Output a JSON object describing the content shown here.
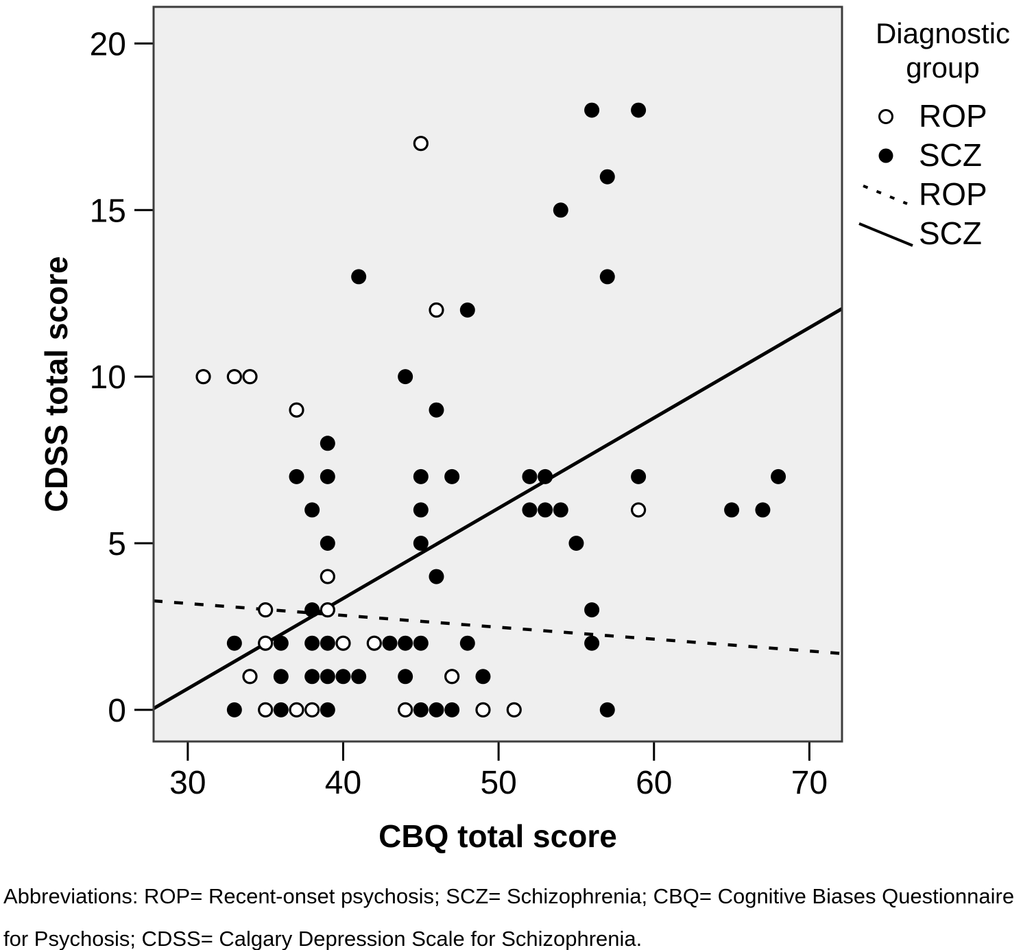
{
  "figure": {
    "x_axis_label": "CBQ total score",
    "y_axis_label": "CDSS total score"
  },
  "legend": {
    "title": "Diagnostic group",
    "items": [
      {
        "marker": "open-circle",
        "label": "ROP"
      },
      {
        "marker": "filled-circle",
        "label": "SCZ"
      },
      {
        "marker": "dotted-line",
        "label": "ROP"
      },
      {
        "marker": "solid-line",
        "label": "SCZ"
      }
    ]
  },
  "caption": {
    "line1": "Abbreviations: ROP= Recent-onset psychosis; SCZ= Schizophrenia; CBQ= Cognitive Biases Questionnaire",
    "line2": "for Psychosis; CDSS= Calgary Depression Scale for Schizophrenia."
  },
  "chart_data": {
    "type": "scatter",
    "title": "",
    "xlabel": "CBQ total score",
    "ylabel": "CDSS total score",
    "xlim": [
      27.8,
      72.1
    ],
    "ylim": [
      -0.95,
      21.1
    ],
    "x_ticks": [
      30,
      40,
      50,
      60,
      70
    ],
    "y_ticks": [
      0,
      5,
      10,
      15,
      20
    ],
    "grid": false,
    "legend_position": "outside-top-right",
    "series": [
      {
        "name": "ROP",
        "marker": "open-circle",
        "points": [
          [
            45,
            17
          ],
          [
            46,
            12
          ],
          [
            31,
            10
          ],
          [
            33,
            10
          ],
          [
            34,
            10
          ],
          [
            37,
            9
          ],
          [
            59,
            6
          ],
          [
            39,
            4
          ],
          [
            35,
            3
          ],
          [
            39,
            3
          ],
          [
            35,
            2
          ],
          [
            40,
            2
          ],
          [
            42,
            2
          ],
          [
            34,
            1
          ],
          [
            47,
            1
          ],
          [
            35,
            0
          ],
          [
            37,
            0
          ],
          [
            38,
            0
          ],
          [
            44,
            0
          ],
          [
            49,
            0
          ],
          [
            51,
            0
          ]
        ]
      },
      {
        "name": "SCZ",
        "marker": "filled-circle",
        "points": [
          [
            56,
            18
          ],
          [
            59,
            18
          ],
          [
            57,
            16
          ],
          [
            54,
            15
          ],
          [
            41,
            13
          ],
          [
            57,
            13
          ],
          [
            48,
            12
          ],
          [
            44,
            10
          ],
          [
            46,
            9
          ],
          [
            39,
            8
          ],
          [
            37,
            7
          ],
          [
            39,
            7
          ],
          [
            45,
            7
          ],
          [
            47,
            7
          ],
          [
            52,
            7
          ],
          [
            53,
            7
          ],
          [
            59,
            7
          ],
          [
            68,
            7
          ],
          [
            38,
            6
          ],
          [
            45,
            6
          ],
          [
            52,
            6
          ],
          [
            53,
            6
          ],
          [
            54,
            6
          ],
          [
            65,
            6
          ],
          [
            67,
            6
          ],
          [
            39,
            5
          ],
          [
            45,
            5
          ],
          [
            55,
            5
          ],
          [
            46,
            4
          ],
          [
            38,
            3
          ],
          [
            56,
            3
          ],
          [
            33,
            2
          ],
          [
            36,
            2
          ],
          [
            38,
            2
          ],
          [
            39,
            2
          ],
          [
            43,
            2
          ],
          [
            44,
            2
          ],
          [
            45,
            2
          ],
          [
            48,
            2
          ],
          [
            56,
            2
          ],
          [
            36,
            1
          ],
          [
            38,
            1
          ],
          [
            39,
            1
          ],
          [
            40,
            1
          ],
          [
            41,
            1
          ],
          [
            44,
            1
          ],
          [
            49,
            1
          ],
          [
            33,
            0
          ],
          [
            36,
            0
          ],
          [
            39,
            0
          ],
          [
            45,
            0
          ],
          [
            46,
            0
          ],
          [
            47,
            0
          ],
          [
            57,
            0
          ]
        ]
      }
    ],
    "fit_lines": [
      {
        "name": "ROP",
        "style": "dotted",
        "x1": 27.8,
        "y1": 3.27,
        "x2": 72.1,
        "y2": 1.69
      },
      {
        "name": "SCZ",
        "style": "solid",
        "x1": 27.8,
        "y1": 0.04,
        "x2": 72.1,
        "y2": 12.04
      }
    ],
    "colors": {
      "point": "#000000",
      "open_fill": "#ffffff",
      "plot_bg": "#efefef",
      "border": "#3d3d3d"
    }
  }
}
